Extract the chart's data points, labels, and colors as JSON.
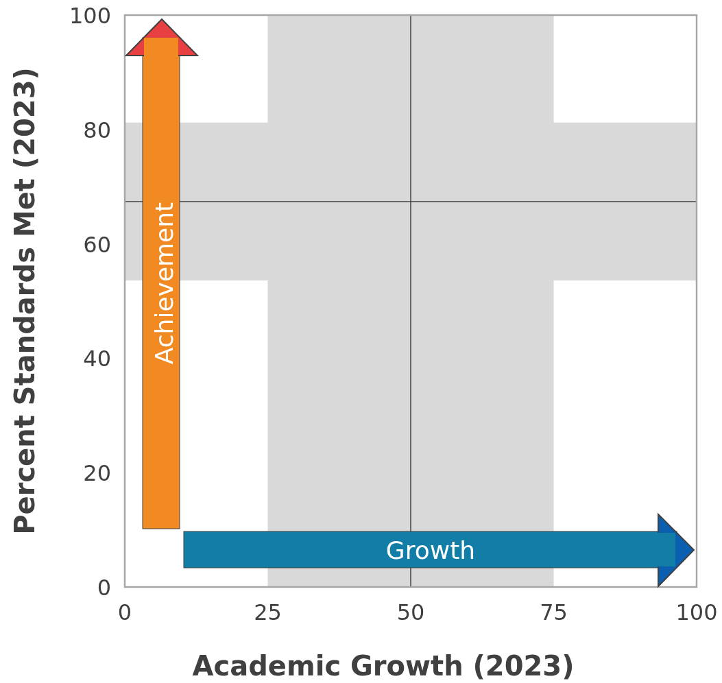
{
  "chart_data": {
    "type": "scatter",
    "xlabel": "Academic Growth (2023)",
    "ylabel": "Percent Standards Met (2023)",
    "xlim": [
      0,
      100
    ],
    "xticks": [
      0,
      25,
      50,
      75,
      100
    ],
    "ylim": [
      0,
      100
    ],
    "yticks": [
      0,
      20,
      40,
      60,
      80,
      100
    ],
    "bands": [
      {
        "axis": "x",
        "from": 25,
        "to": 75,
        "color": "#d9d9d9"
      },
      {
        "axis": "y",
        "from": 53.6,
        "to": 81.2,
        "color": "#d9d9d9"
      }
    ],
    "ref_lines": [
      {
        "axis": "x",
        "value": 50,
        "color": "#404040"
      },
      {
        "axis": "y",
        "value": 67.4,
        "color": "#404040"
      }
    ],
    "annotations": [
      "Achievement",
      "Growth"
    ],
    "grid": false
  }
}
